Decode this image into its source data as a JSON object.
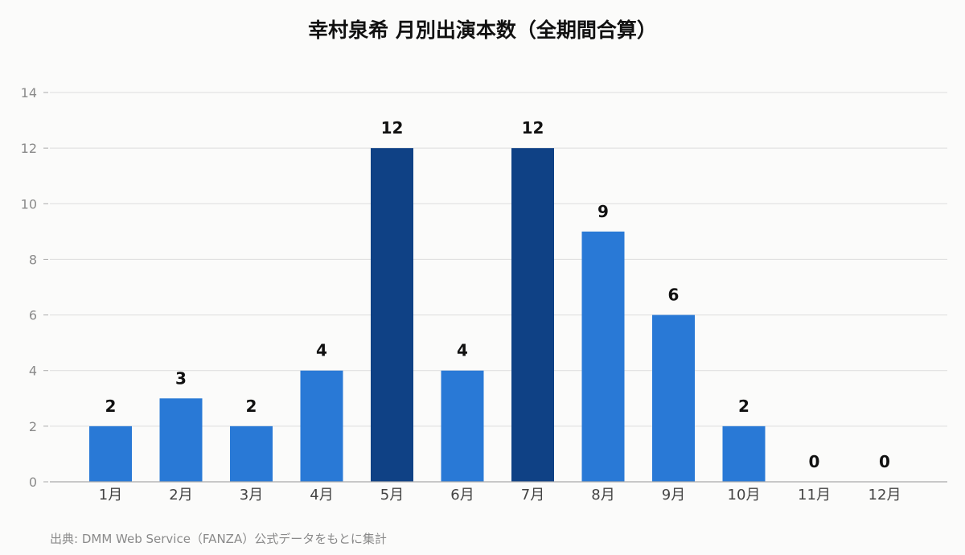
{
  "chart_data": {
    "type": "bar",
    "title": "幸村泉希 月別出演本数（全期間合算）",
    "xlabel": "",
    "ylabel": "",
    "categories": [
      "1月",
      "2月",
      "3月",
      "4月",
      "5月",
      "6月",
      "7月",
      "8月",
      "9月",
      "10月",
      "11月",
      "12月"
    ],
    "values": [
      2,
      3,
      2,
      4,
      12,
      4,
      12,
      9,
      6,
      2,
      0,
      0
    ],
    "ylim": [
      0,
      14
    ],
    "yticks": [
      0,
      2,
      4,
      6,
      8,
      10,
      12,
      14
    ],
    "grid": true,
    "legend": "none",
    "colors": {
      "bar": "#2979d6",
      "bar_highlight": "#0f4185",
      "grid": "#dddddd",
      "axis": "#aaaaaa"
    },
    "highlight_max": true
  },
  "footer": {
    "source": "出典: DMM Web Service（FANZA）公式データをもとに集計"
  }
}
